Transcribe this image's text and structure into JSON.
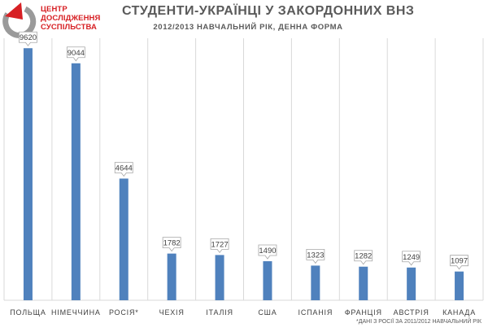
{
  "header": {
    "logo_lines": [
      "ЦЕНТР",
      "ДОСЛІДЖЕННЯ",
      "СУСПІЛЬСТВА"
    ],
    "title": "СТУДЕНТИ-УКРАЇНЦІ У ЗАКОРДОННИХ ВНЗ",
    "subtitle": "2012/2013 НАВЧАЛЬНИЙ РІК, ДЕННА ФОРМА"
  },
  "footnote": "*ДАНІ З РОСІЇ ЗА 2011/2012 НАВЧАЛЬНИЙ РІК",
  "colors": {
    "bar": "#4f81bd",
    "logo_red": "#d72024",
    "logo_gray": "#9a9a9a",
    "grid": "#d9d9d9"
  },
  "chart_data": {
    "type": "bar",
    "categories": [
      "ПОЛЬЩА",
      "НІМЕЧЧИНА",
      "РОСІЯ*",
      "ЧЕХІЯ",
      "ІТАЛІЯ",
      "США",
      "ІСПАНІЯ",
      "ФРАНЦІЯ",
      "АВСТРІЯ",
      "КАНАДА"
    ],
    "values": [
      9620,
      9044,
      4644,
      1782,
      1727,
      1490,
      1323,
      1282,
      1249,
      1097
    ],
    "title": "СТУДЕНТИ-УКРАЇНЦІ У ЗАКОРДОННИХ ВНЗ",
    "subtitle": "2012/2013 НАВЧАЛЬНИЙ РІК, ДЕННА ФОРМА",
    "xlabel": "",
    "ylabel": "",
    "ylim": [
      0,
      10000
    ],
    "grid": "vertical separators only",
    "data_labels": true,
    "legend": "none"
  }
}
